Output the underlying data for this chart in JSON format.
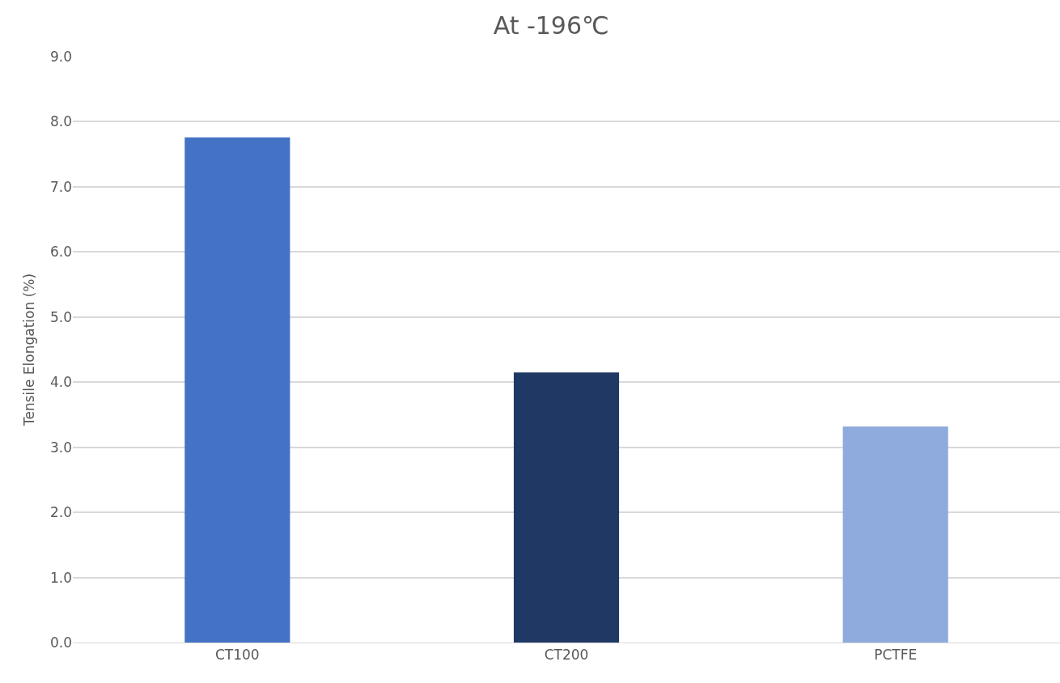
{
  "chart_data": {
    "type": "bar",
    "title": "At -196℃",
    "ylabel": "Tensile Elongation (%)",
    "categories": [
      "CT100",
      "CT200",
      "PCTFE"
    ],
    "values": [
      7.76,
      4.15,
      3.32
    ],
    "colors": [
      "#4472c4",
      "#203864",
      "#8faadc"
    ],
    "ylim": [
      0,
      9
    ],
    "yticks": [
      {
        "value": 0,
        "label": "0.0"
      },
      {
        "value": 1,
        "label": "1.0"
      },
      {
        "value": 2,
        "label": "2.0"
      },
      {
        "value": 3,
        "label": "3.0"
      },
      {
        "value": 4,
        "label": "4.0"
      },
      {
        "value": 5,
        "label": "5.0"
      },
      {
        "value": 6,
        "label": "6.0"
      },
      {
        "value": 7,
        "label": "7.0"
      },
      {
        "value": 8,
        "label": "8.0"
      },
      {
        "value": 9,
        "label": "9.0"
      }
    ],
    "grid": "y"
  }
}
